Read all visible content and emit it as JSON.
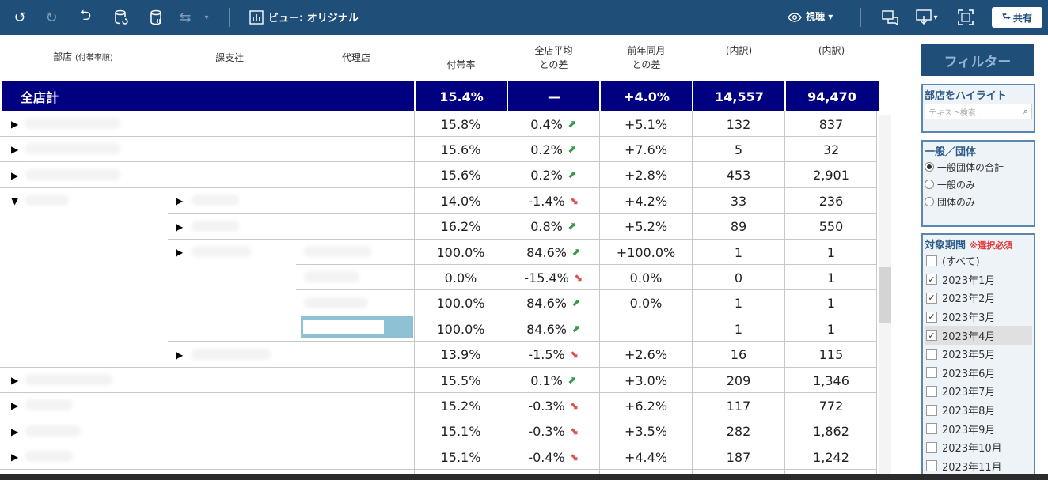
{
  "toolbar": {
    "view_label": "ビュー: オリジナル",
    "watch_label": "視聴",
    "share_label": "共有"
  },
  "headers": {
    "department": "部店",
    "department_sub": "(付帯率順)",
    "branch": "課支社",
    "agency": "代理店",
    "rate": "付帯率",
    "diff_avg_1": "全店平均",
    "diff_avg_2": "との差",
    "diff_prev_1": "前年同月",
    "diff_prev_2": "との差",
    "breakdown_1": "(内訳)",
    "breakdown_2": "(内訳)"
  },
  "total": {
    "label": "全店計",
    "rate": "15.4%",
    "diff_avg": "—",
    "diff_prev": "+4.0%",
    "count1": "14,557",
    "count2": "94,470"
  },
  "rows": [
    {
      "rate": "15.8%",
      "diff_avg": "0.4%",
      "dir": "up",
      "diff_prev": "+5.1%",
      "c1": "132",
      "c2": "837"
    },
    {
      "rate": "15.6%",
      "diff_avg": "0.2%",
      "dir": "up",
      "diff_prev": "+7.6%",
      "c1": "5",
      "c2": "32"
    },
    {
      "rate": "15.6%",
      "diff_avg": "0.2%",
      "dir": "up",
      "diff_prev": "+2.8%",
      "c1": "453",
      "c2": "2,901"
    },
    {
      "rate": "14.0%",
      "diff_avg": "-1.4%",
      "dir": "down",
      "diff_prev": "+4.2%",
      "c1": "33",
      "c2": "236"
    },
    {
      "rate": "16.2%",
      "diff_avg": "0.8%",
      "dir": "up",
      "diff_prev": "+5.2%",
      "c1": "89",
      "c2": "550"
    },
    {
      "rate": "100.0%",
      "diff_avg": "84.6%",
      "dir": "up",
      "diff_prev": "+100.0%",
      "c1": "1",
      "c2": "1"
    },
    {
      "rate": "0.0%",
      "diff_avg": "-15.4%",
      "dir": "down",
      "diff_prev": "0.0%",
      "c1": "0",
      "c2": "1"
    },
    {
      "rate": "100.0%",
      "diff_avg": "84.6%",
      "dir": "up",
      "diff_prev": "0.0%",
      "c1": "1",
      "c2": "1"
    },
    {
      "rate": "100.0%",
      "diff_avg": "84.6%",
      "dir": "up",
      "diff_prev": "",
      "c1": "1",
      "c2": "1"
    },
    {
      "rate": "13.9%",
      "diff_avg": "-1.5%",
      "dir": "down",
      "diff_prev": "+2.6%",
      "c1": "16",
      "c2": "115"
    },
    {
      "rate": "15.5%",
      "diff_avg": "0.1%",
      "dir": "up",
      "diff_prev": "+3.0%",
      "c1": "209",
      "c2": "1,346"
    },
    {
      "rate": "15.2%",
      "diff_avg": "-0.3%",
      "dir": "down",
      "diff_prev": "+6.2%",
      "c1": "117",
      "c2": "772"
    },
    {
      "rate": "15.1%",
      "diff_avg": "-0.3%",
      "dir": "down",
      "diff_prev": "+3.5%",
      "c1": "282",
      "c2": "1,862"
    },
    {
      "rate": "15.1%",
      "diff_avg": "-0.4%",
      "dir": "down",
      "diff_prev": "+4.4%",
      "c1": "187",
      "c2": "1,242"
    }
  ],
  "sidebar": {
    "filter_button": "フィルター",
    "highlight_title": "部店をハイライト",
    "search_placeholder": "テキスト検索 ...",
    "type_title": "一般／団体",
    "type_options": [
      "一般団体の合計",
      "一般のみ",
      "団体のみ"
    ],
    "period_title": "対象期間",
    "period_required": "※選択必須",
    "period_options": [
      {
        "label": "(すべて)",
        "checked": false
      },
      {
        "label": "2023年1月",
        "checked": true
      },
      {
        "label": "2023年2月",
        "checked": true
      },
      {
        "label": "2023年3月",
        "checked": true
      },
      {
        "label": "2023年4月",
        "checked": true
      },
      {
        "label": "2023年5月",
        "checked": false
      },
      {
        "label": "2023年6月",
        "checked": false
      },
      {
        "label": "2023年7月",
        "checked": false
      },
      {
        "label": "2023年8月",
        "checked": false
      },
      {
        "label": "2023年9月",
        "checked": false
      },
      {
        "label": "2023年10月",
        "checked": false
      },
      {
        "label": "2023年11月",
        "checked": false
      }
    ]
  }
}
